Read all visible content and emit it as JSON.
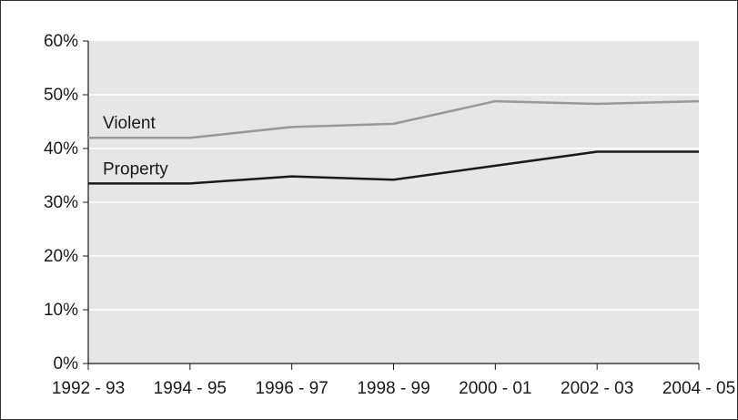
{
  "chart_data": {
    "type": "line",
    "title": "",
    "xlabel": "",
    "ylabel": "",
    "categories": [
      "1992 - 93",
      "1994 - 95",
      "1996 - 97",
      "1998 - 99",
      "2000 - 01",
      "2002 - 03",
      "2004 - 05"
    ],
    "ylim": [
      0,
      60
    ],
    "yticks": [
      "0%",
      "10%",
      "20%",
      "30%",
      "40%",
      "50%",
      "60%"
    ],
    "grid": true,
    "series": [
      {
        "name": "Violent",
        "values": [
          42,
          42,
          44,
          44.6,
          48.8,
          48.3,
          48.8
        ],
        "color": "#999999"
      },
      {
        "name": "Property",
        "values": [
          33.5,
          33.5,
          34.8,
          34.2,
          36.8,
          39.4,
          39.4
        ],
        "color": "#1a1a1a"
      }
    ],
    "plot_background": "#e6e6e6",
    "gridline_color": "#ffffff"
  }
}
